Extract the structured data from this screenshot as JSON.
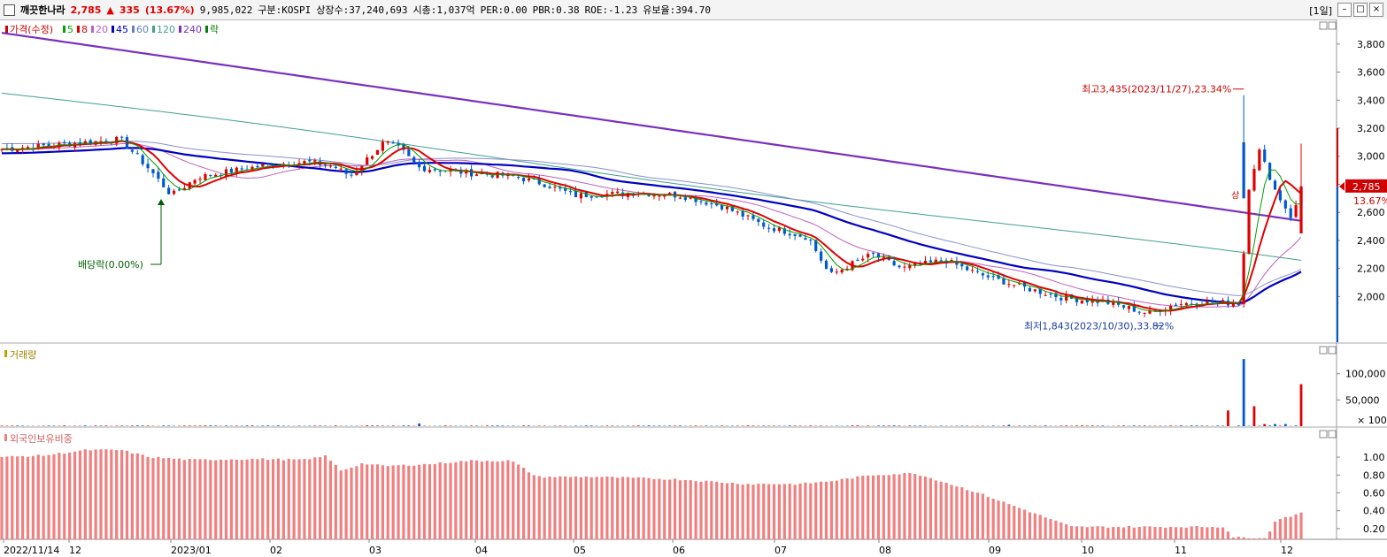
{
  "header": {
    "title": "깨끗한나라",
    "price": "2,785",
    "change_arrow": "▲",
    "change": "335",
    "change_pct": "(13.67%)",
    "volume": "9,985,022",
    "market": "구분:KOSPI",
    "shares": "상장수:37,240,693",
    "market_cap": "시총:1,037억",
    "per": "PER:0.00",
    "pbr": "PBR:0.38",
    "roe": "ROE:-1.23",
    "reserve": "유보율:394.70",
    "period": "[1일]"
  },
  "price_panel": {
    "legend": [
      {
        "label": "가격(수정)",
        "color": "#d00000"
      },
      {
        "label": "5",
        "color": "#00a000"
      },
      {
        "label": "8",
        "color": "#e00000"
      },
      {
        "label": "20",
        "color": "#c060c0"
      },
      {
        "label": "45",
        "color": "#0000c0"
      },
      {
        "label": "60",
        "color": "#6080c0"
      },
      {
        "label": "120",
        "color": "#40a090"
      },
      {
        "label": "240",
        "color": "#7a2fbf"
      },
      {
        "label": "락",
        "color": "#008000"
      }
    ],
    "y_ticks": [
      "3,800",
      "3,600",
      "3,400",
      "3,200",
      "3,000",
      "2,800",
      "2,600",
      "2,400",
      "2,200",
      "2,000"
    ],
    "high_annotation": "최고3,435(2023/11/27),23.34%",
    "low_annotation": "최저1,843(2023/10/30),33.82%",
    "dividend_annotation": "배당락(0.00%)",
    "up_mark": "상",
    "current_price_tag": "2,785",
    "current_pct_tag": "13.67%"
  },
  "volume_panel": {
    "legend": "거래량",
    "y_ticks": [
      "100,000",
      "50,000"
    ],
    "unit": "× 100"
  },
  "foreign_panel": {
    "legend": "외국인보유비중",
    "y_ticks": [
      "1.00",
      "0.80",
      "0.60",
      "0.40",
      "0.20"
    ]
  },
  "x_axis": [
    "2022/11/14",
    "12",
    "2023/01",
    "02",
    "03",
    "04",
    "05",
    "06",
    "07",
    "08",
    "09",
    "10",
    "11",
    "12"
  ],
  "colors": {
    "up": "#e00000",
    "down": "#0058d0",
    "ma240": "#7a2fbf",
    "ma120": "#40a090",
    "ma60": "#8a90d0",
    "ma45": "#0000c0",
    "ma20": "#c060c0",
    "ma8": "#e00000",
    "ma5": "#00a000",
    "foreign": "#f08080"
  },
  "chart_data": {
    "type": "line",
    "x": [
      "2022-11",
      "2022-12",
      "2023-01",
      "2023-02",
      "2023-03",
      "2023-04",
      "2023-05",
      "2023-06",
      "2023-07",
      "2023-08",
      "2023-09",
      "2023-10",
      "2023-11",
      "2023-12"
    ],
    "series_price_close": [
      3080,
      3100,
      2850,
      2950,
      2920,
      2880,
      2720,
      2730,
      2500,
      2220,
      2220,
      1960,
      1930,
      2785
    ],
    "price_high": 3435,
    "price_low": 1843,
    "foreign_ratio_start": 1.0,
    "foreign_ratio_end": 0.37,
    "ylim": [
      1700,
      3950
    ]
  }
}
